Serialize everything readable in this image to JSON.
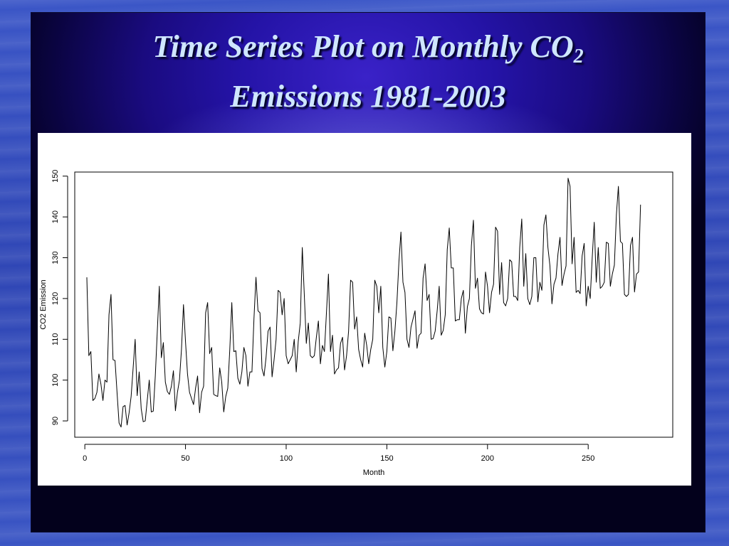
{
  "slide": {
    "title_line1": "Time Series Plot on Monthly CO",
    "title_sub": "2",
    "title_line2": "Emissions 1981-2003"
  },
  "chart_data": {
    "type": "line",
    "title": "",
    "xlabel": "Month",
    "ylabel": "CO2 Emission",
    "xlim": [
      -5,
      292
    ],
    "ylim": [
      86,
      151
    ],
    "x_ticks": [
      0,
      50,
      100,
      150,
      200,
      250
    ],
    "y_ticks": [
      90,
      100,
      110,
      120,
      130,
      140,
      150
    ],
    "grid": false,
    "series": [
      {
        "color": "#000000",
        "x_start": 1,
        "values": [
          125.2,
          106,
          107,
          95,
          95.5,
          97,
          101.5,
          99,
          95,
          100,
          99.5,
          116,
          121,
          105,
          104.8,
          97,
          89.5,
          88.5,
          93.5,
          93.8,
          89,
          92,
          96,
          103,
          110,
          96.2,
          102,
          93,
          89.8,
          90,
          95,
          100,
          92.2,
          92.4,
          101,
          112,
          123,
          105.5,
          109.2,
          99.5,
          97.2,
          96.5,
          98.5,
          102.3,
          92.5,
          97,
          100,
          107.5,
          118.5,
          109.5,
          101.5,
          97,
          95.5,
          94,
          98,
          101,
          92,
          97,
          98.5,
          116.5,
          119,
          106.5,
          108,
          96.5,
          96.2,
          96,
          103,
          99.5,
          92.2,
          96,
          98,
          107.5,
          119,
          107,
          107.2,
          100.5,
          99,
          102,
          108,
          106,
          98.5,
          102,
          102,
          115,
          125.2,
          117,
          116.5,
          102.8,
          101,
          105.5,
          112,
          113,
          100.8,
          105,
          110,
          122,
          121.5,
          116,
          120,
          106,
          104,
          105,
          106,
          110,
          102,
          109.5,
          114,
          132.5,
          121,
          109,
          114,
          106,
          105.5,
          106,
          110.5,
          114.5,
          104,
          108.5,
          107,
          116.5,
          126,
          107,
          111,
          101.5,
          102.5,
          103,
          109,
          110.5,
          102.5,
          106,
          112,
          124.5,
          124,
          112.5,
          115.5,
          107.5,
          105,
          103.2,
          111.5,
          108.5,
          104,
          107.5,
          110,
          124.5,
          123,
          116.5,
          123,
          108,
          103.2,
          107,
          115.5,
          115.2,
          107.2,
          112,
          119,
          129,
          136.3,
          124,
          121.5,
          110,
          108,
          113,
          115,
          117,
          107.8,
          111,
          111.5,
          125,
          128.5,
          119.5,
          121,
          110,
          110.2,
          112,
          117,
          123,
          111,
          112.2,
          116,
          132,
          137.3,
          127.5,
          127.5,
          114.5,
          114.8,
          114.8,
          120,
          122,
          111.5,
          118,
          120,
          133,
          139.2,
          122.5,
          125,
          117.5,
          116.5,
          116.2,
          126.5,
          123,
          116.5,
          121.5,
          123.5,
          137.5,
          136.5,
          121,
          128.8,
          119,
          118.2,
          120,
          129.5,
          129,
          120.5,
          120.5,
          119.5,
          132.5,
          139.5,
          123,
          131,
          120,
          118.5,
          120.5,
          130,
          130,
          119.2,
          124,
          122,
          138,
          140.5,
          132.5,
          128,
          118.7,
          123.5,
          125,
          131,
          135,
          123.2,
          126,
          128,
          149.5,
          147.5,
          128.5,
          135,
          121.5,
          122,
          121.2,
          130.5,
          133.5,
          118.2,
          123,
          120,
          130,
          138.7,
          124,
          132.5,
          122.5,
          123,
          124,
          133.8,
          133.5,
          123,
          126,
          128.2,
          140.5,
          147.5,
          134,
          133.5,
          121,
          120.5,
          121,
          133,
          135,
          121.6,
          126,
          126.5,
          143
        ]
      }
    ]
  }
}
